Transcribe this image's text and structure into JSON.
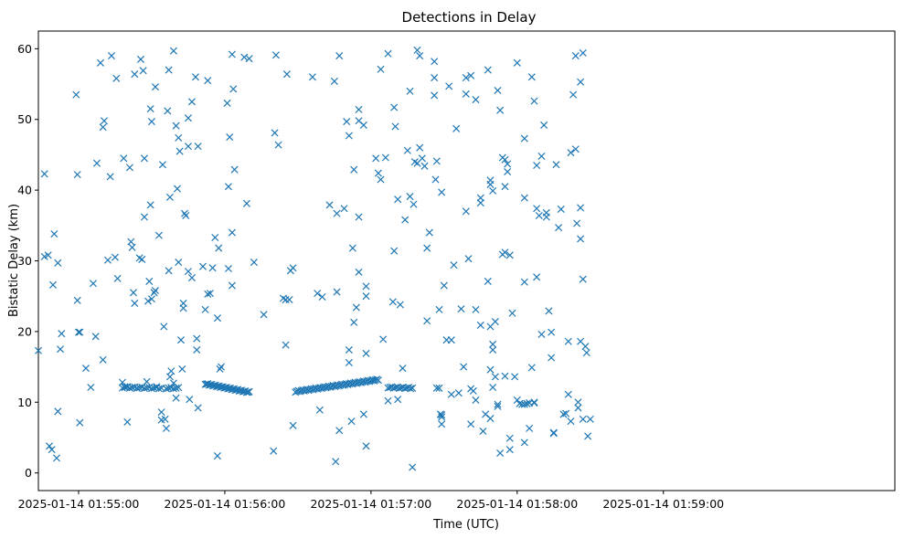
{
  "chart_data": {
    "type": "scatter",
    "title": "Detections in Delay",
    "xlabel": "Time (UTC)",
    "ylabel": "Bistatic Delay (km)",
    "marker": "x",
    "color": "#1f77b4",
    "grid": false,
    "x_unit": "seconds after 2025-01-14 01:54:00 UTC",
    "xlim": [
      43.5,
      395
    ],
    "ylim": [
      -2.5,
      62.5
    ],
    "x_ticks": [
      {
        "value": 60,
        "label": "2025-01-14 01:55:00"
      },
      {
        "value": 120,
        "label": "2025-01-14 01:56:00"
      },
      {
        "value": 180,
        "label": "2025-01-14 01:57:00"
      },
      {
        "value": 240,
        "label": "2025-01-14 01:58:00"
      },
      {
        "value": 300,
        "label": "2025-01-14 01:59:00"
      }
    ],
    "y_ticks": [
      {
        "value": 0,
        "label": "0"
      },
      {
        "value": 10,
        "label": "10"
      },
      {
        "value": 20,
        "label": "20"
      },
      {
        "value": 30,
        "label": "30"
      },
      {
        "value": 40,
        "label": "40"
      },
      {
        "value": 50,
        "label": "50"
      },
      {
        "value": 60,
        "label": "60"
      }
    ],
    "points": [
      [
        43.5,
        17.3
      ],
      [
        46,
        42.3
      ],
      [
        46,
        30.6
      ],
      [
        47.5,
        30.8
      ],
      [
        48,
        3.8
      ],
      [
        49,
        3.3
      ],
      [
        49.5,
        26.6
      ],
      [
        50,
        33.8
      ],
      [
        51,
        2.1
      ],
      [
        51.5,
        8.7
      ],
      [
        51.5,
        29.7
      ],
      [
        52.5,
        17.5
      ],
      [
        53,
        19.7
      ],
      [
        59,
        53.5
      ],
      [
        59.5,
        24.4
      ],
      [
        59.5,
        42.2
      ],
      [
        60,
        19.9
      ],
      [
        60.5,
        19.9
      ],
      [
        60.5,
        7.1
      ],
      [
        63,
        14.8
      ],
      [
        65,
        12.1
      ],
      [
        66,
        26.8
      ],
      [
        67,
        19.3
      ],
      [
        67.5,
        43.8
      ],
      [
        69,
        58
      ],
      [
        70,
        16
      ],
      [
        70,
        48.9
      ],
      [
        70.5,
        49.8
      ],
      [
        72,
        30.1
      ],
      [
        73,
        41.9
      ],
      [
        73.5,
        59
      ],
      [
        75,
        30.5
      ],
      [
        75.5,
        55.8
      ],
      [
        76,
        27.5
      ],
      [
        78,
        12.8
      ],
      [
        78.5,
        44.5
      ],
      [
        79,
        12.2
      ],
      [
        80,
        7.2
      ],
      [
        80,
        12.2
      ],
      [
        81,
        43.2
      ],
      [
        81.5,
        32.7
      ],
      [
        82,
        12.1
      ],
      [
        82,
        31.9
      ],
      [
        82.5,
        25.5
      ],
      [
        83,
        56.4
      ],
      [
        83,
        24
      ],
      [
        84,
        12
      ],
      [
        85,
        30.4
      ],
      [
        85.5,
        58.5
      ],
      [
        86,
        30.2
      ],
      [
        86.5,
        56.9
      ],
      [
        87,
        44.5
      ],
      [
        87,
        36.2
      ],
      [
        88,
        12.9
      ],
      [
        88.5,
        24.3
      ],
      [
        89,
        27.1
      ],
      [
        89.5,
        51.5
      ],
      [
        89.5,
        37.9
      ],
      [
        90,
        49.7
      ],
      [
        90,
        24.6
      ],
      [
        91,
        25.5
      ],
      [
        91.5,
        25.8
      ],
      [
        91.5,
        54.6
      ],
      [
        92,
        12.2
      ],
      [
        93,
        33.6
      ],
      [
        94,
        12
      ],
      [
        94,
        8.6
      ],
      [
        94,
        7.5
      ],
      [
        94.5,
        43.6
      ],
      [
        95,
        20.7
      ],
      [
        95.5,
        7.6
      ],
      [
        96,
        6.3
      ],
      [
        96,
        11.9
      ],
      [
        96.5,
        51.2
      ],
      [
        97,
        57
      ],
      [
        97,
        28.6
      ],
      [
        97.5,
        13.6
      ],
      [
        97.5,
        39
      ],
      [
        98,
        14.4
      ],
      [
        99,
        59.7
      ],
      [
        99,
        12.7
      ],
      [
        100,
        49.1
      ],
      [
        100,
        10.6
      ],
      [
        100.5,
        40.2
      ],
      [
        101,
        29.8
      ],
      [
        101,
        47.4
      ],
      [
        101.5,
        45.5
      ],
      [
        102,
        18.8
      ],
      [
        102.5,
        14.7
      ],
      [
        103,
        24
      ],
      [
        103,
        23.3
      ],
      [
        103.5,
        36.7
      ],
      [
        104,
        36.4
      ],
      [
        105,
        50.2
      ],
      [
        105,
        46.2
      ],
      [
        105,
        28.5
      ],
      [
        105.5,
        10.4
      ],
      [
        106.5,
        27.6
      ],
      [
        106.5,
        52.5
      ],
      [
        108,
        56
      ],
      [
        108.5,
        17.4
      ],
      [
        108.5,
        19
      ],
      [
        109,
        46.2
      ],
      [
        109,
        9.2
      ],
      [
        111,
        29.2
      ],
      [
        112,
        23.1
      ],
      [
        113,
        25.3
      ],
      [
        113,
        55.5
      ],
      [
        114,
        25.4
      ],
      [
        115,
        29
      ],
      [
        116,
        33.3
      ],
      [
        117,
        21.9
      ],
      [
        117,
        2.4
      ],
      [
        117.5,
        31.8
      ],
      [
        118,
        14.7
      ],
      [
        118.5,
        15
      ],
      [
        121,
        52.3
      ],
      [
        121.5,
        40.5
      ],
      [
        121.5,
        28.9
      ],
      [
        122,
        47.5
      ],
      [
        123,
        59.2
      ],
      [
        123,
        26.5
      ],
      [
        123,
        34
      ],
      [
        123.5,
        54.3
      ],
      [
        124,
        42.9
      ],
      [
        128,
        58.8
      ],
      [
        129,
        38.1
      ],
      [
        130,
        58.6
      ],
      [
        132,
        29.8
      ],
      [
        136,
        22.4
      ],
      [
        140,
        3.1
      ],
      [
        140.5,
        48.1
      ],
      [
        141,
        59.1
      ],
      [
        142,
        46.4
      ],
      [
        144,
        24.7
      ],
      [
        145,
        18.1
      ],
      [
        145,
        24.5
      ],
      [
        145.5,
        56.4
      ],
      [
        146.5,
        24.5
      ],
      [
        147,
        28.6
      ],
      [
        148,
        29
      ],
      [
        148,
        6.7
      ],
      [
        156,
        56
      ],
      [
        158,
        25.4
      ],
      [
        159,
        8.9
      ],
      [
        160,
        24.9
      ],
      [
        163,
        37.9
      ],
      [
        165,
        55.4
      ],
      [
        165.5,
        1.6
      ],
      [
        166,
        25.6
      ],
      [
        166,
        36.7
      ],
      [
        167,
        59
      ],
      [
        167,
        6
      ],
      [
        169,
        37.4
      ],
      [
        170,
        49.7
      ],
      [
        171,
        47.7
      ],
      [
        171,
        17.4
      ],
      [
        171,
        15.6
      ],
      [
        172,
        7.3
      ],
      [
        172.5,
        31.8
      ],
      [
        173,
        42.9
      ],
      [
        173,
        21.3
      ],
      [
        174,
        23.4
      ],
      [
        175,
        49.8
      ],
      [
        175,
        51.4
      ],
      [
        175,
        28.4
      ],
      [
        175,
        36.2
      ],
      [
        177,
        8.3
      ],
      [
        177,
        49.2
      ],
      [
        178,
        26.4
      ],
      [
        178,
        25
      ],
      [
        178,
        3.8
      ],
      [
        178,
        16.9
      ],
      [
        181,
        13.1
      ],
      [
        182,
        44.5
      ],
      [
        183,
        42.4
      ],
      [
        184,
        57.1
      ],
      [
        184,
        41.5
      ],
      [
        185,
        18.9
      ],
      [
        186,
        44.6
      ],
      [
        187,
        59.3
      ],
      [
        187,
        10.2
      ],
      [
        189,
        24.2
      ],
      [
        189.5,
        51.7
      ],
      [
        189.5,
        31.4
      ],
      [
        190,
        49
      ],
      [
        191,
        10.4
      ],
      [
        191,
        38.7
      ],
      [
        192,
        23.8
      ],
      [
        193,
        14.8
      ],
      [
        194,
        35.8
      ],
      [
        195,
        45.6
      ],
      [
        196,
        54
      ],
      [
        196,
        39.1
      ],
      [
        197,
        0.8
      ],
      [
        197.5,
        38
      ],
      [
        198,
        44
      ],
      [
        199,
        43.8
      ],
      [
        199,
        59.8
      ],
      [
        200,
        59
      ],
      [
        200,
        46
      ],
      [
        201,
        44.5
      ],
      [
        202,
        43.4
      ],
      [
        203,
        31.8
      ],
      [
        203,
        21.5
      ],
      [
        204,
        34
      ],
      [
        206,
        55.9
      ],
      [
        206,
        58.2
      ],
      [
        206,
        53.4
      ],
      [
        206.5,
        41.5
      ],
      [
        207,
        44.1
      ],
      [
        207,
        12
      ],
      [
        208,
        12
      ],
      [
        208,
        23.1
      ],
      [
        208.5,
        8.3
      ],
      [
        209,
        8.2
      ],
      [
        209,
        6.9
      ],
      [
        209,
        7.9
      ],
      [
        209,
        39.7
      ],
      [
        210,
        26.5
      ],
      [
        211,
        18.8
      ],
      [
        212,
        54.7
      ],
      [
        213,
        11.1
      ],
      [
        213,
        18.8
      ],
      [
        214,
        29.4
      ],
      [
        215,
        48.7
      ],
      [
        216,
        11.3
      ],
      [
        217,
        23.2
      ],
      [
        218,
        15
      ],
      [
        219,
        37
      ],
      [
        219,
        55.9
      ],
      [
        219,
        53.6
      ],
      [
        220,
        30.3
      ],
      [
        221,
        56.2
      ],
      [
        221,
        11.9
      ],
      [
        221,
        6.9
      ],
      [
        222,
        11.6
      ],
      [
        223,
        10.3
      ],
      [
        223,
        23.1
      ],
      [
        223,
        52.8
      ],
      [
        225,
        38.9
      ],
      [
        225,
        38.2
      ],
      [
        225,
        20.9
      ],
      [
        226,
        5.9
      ],
      [
        227,
        8.3
      ],
      [
        228,
        57
      ],
      [
        228,
        27.1
      ],
      [
        229,
        14.6
      ],
      [
        229,
        20.7
      ],
      [
        229,
        7.7
      ],
      [
        229,
        41.4
      ],
      [
        229,
        40.8
      ],
      [
        230,
        39.9
      ],
      [
        230,
        18.2
      ],
      [
        230,
        17.4
      ],
      [
        230,
        12.1
      ],
      [
        231,
        21.4
      ],
      [
        231,
        13.6
      ],
      [
        232,
        54.1
      ],
      [
        232,
        9.4
      ],
      [
        232,
        9.7
      ],
      [
        233,
        51.3
      ],
      [
        233,
        2.8
      ],
      [
        234,
        30.9
      ],
      [
        234,
        44.6
      ],
      [
        235,
        44.3
      ],
      [
        235,
        31.2
      ],
      [
        235,
        40.5
      ],
      [
        235,
        13.7
      ],
      [
        236,
        43.7
      ],
      [
        236,
        42.6
      ],
      [
        237,
        30.8
      ],
      [
        237,
        3.3
      ],
      [
        237,
        4.9
      ],
      [
        238,
        22.6
      ],
      [
        239,
        13.6
      ],
      [
        240,
        58
      ],
      [
        240,
        10.3
      ],
      [
        241,
        9.8
      ],
      [
        242,
        9.7
      ],
      [
        243,
        47.3
      ],
      [
        243,
        38.9
      ],
      [
        243,
        9.7
      ],
      [
        243,
        27
      ],
      [
        243,
        4.3
      ],
      [
        244,
        9.8
      ],
      [
        245,
        6.3
      ],
      [
        245,
        9.9
      ],
      [
        246,
        56
      ],
      [
        246,
        14.9
      ],
      [
        247,
        10
      ],
      [
        247,
        52.6
      ],
      [
        247,
        9.9
      ],
      [
        248,
        43.5
      ],
      [
        248,
        27.7
      ],
      [
        248,
        37.4
      ],
      [
        249,
        36.4
      ],
      [
        250,
        44.8
      ],
      [
        250,
        19.6
      ],
      [
        251,
        49.2
      ],
      [
        252,
        36.8
      ],
      [
        252,
        36.2
      ],
      [
        253,
        22.9
      ],
      [
        254,
        16.3
      ],
      [
        254,
        19.9
      ],
      [
        255,
        5.7
      ],
      [
        255,
        5.6
      ],
      [
        256,
        43.6
      ],
      [
        257,
        34.7
      ],
      [
        258,
        37.3
      ],
      [
        259,
        8.3
      ],
      [
        260,
        8.4
      ],
      [
        261,
        18.6
      ],
      [
        261,
        11.1
      ],
      [
        262,
        45.3
      ],
      [
        262,
        7.3
      ],
      [
        263,
        53.5
      ],
      [
        264,
        59
      ],
      [
        264,
        45.8
      ],
      [
        264.5,
        35.3
      ],
      [
        265,
        9.2
      ],
      [
        265,
        10
      ],
      [
        266,
        55.3
      ],
      [
        266,
        37.5
      ],
      [
        266,
        33.1
      ],
      [
        266,
        18.6
      ],
      [
        267,
        59.4
      ],
      [
        267,
        7.6
      ],
      [
        267,
        27.4
      ],
      [
        268,
        17.9
      ],
      [
        268.5,
        17
      ],
      [
        269,
        5.2
      ],
      [
        270,
        7.6
      ]
    ],
    "track_segments": [
      {
        "x_start": 78,
        "x_end": 93,
        "y_start": 12.1,
        "y_end": 12.0,
        "count": 16
      },
      {
        "x_start": 96,
        "x_end": 101,
        "y_start": 12.0,
        "y_end": 12.0,
        "count": 6
      },
      {
        "x_start": 112,
        "x_end": 130,
        "y_start": 12.6,
        "y_end": 11.4,
        "count": 36
      },
      {
        "x_start": 149,
        "x_end": 183,
        "y_start": 11.5,
        "y_end": 13.2,
        "count": 58
      },
      {
        "x_start": 187,
        "x_end": 197,
        "y_start": 12.1,
        "y_end": 12.0,
        "count": 14
      }
    ]
  }
}
